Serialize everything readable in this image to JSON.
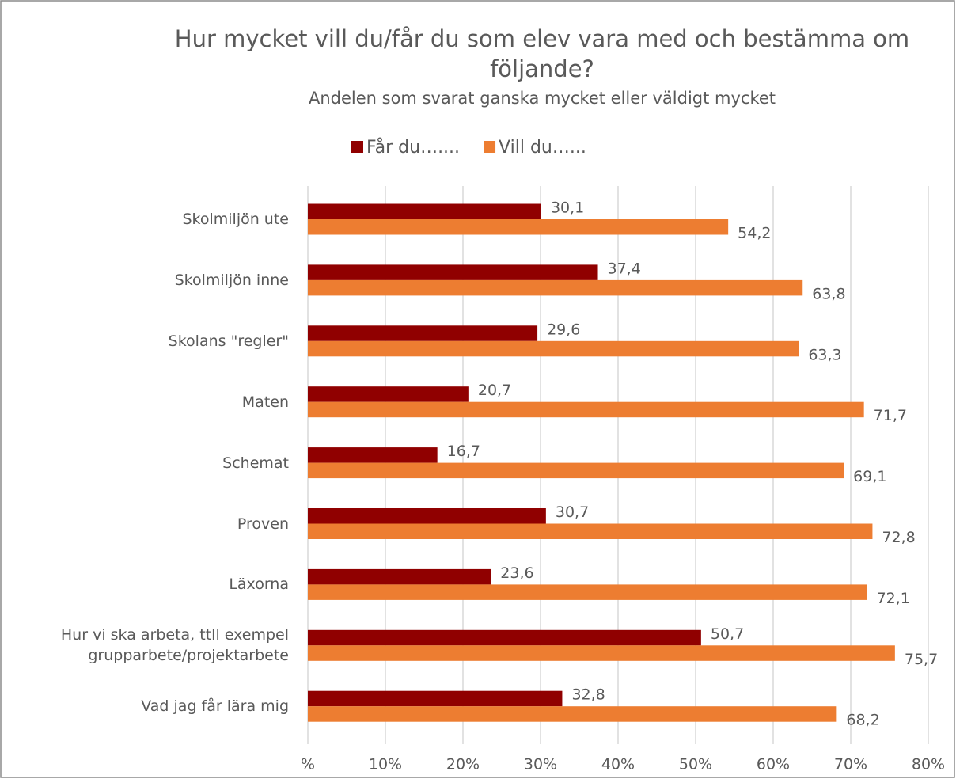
{
  "chart_data": {
    "type": "bar",
    "orientation": "horizontal",
    "title": "Hur mycket vill du/får du som elev vara med och bestämma om följande?",
    "subtitle": "Andelen som svarat ganska mycket eller väldigt mycket",
    "categories": [
      "Skolmiljön ute",
      "Skolmiljön inne",
      "Skolans \"regler\"",
      "Maten",
      "Schemat",
      "Proven",
      "Läxorna",
      "Hur vi ska arbeta, ttll exempel\ngrupparbete/projektarbete",
      "Vad jag får lära mig"
    ],
    "series": [
      {
        "name": "Får du…....",
        "color": "#900000",
        "values": [
          30.1,
          37.4,
          29.6,
          20.7,
          16.7,
          30.7,
          23.6,
          50.7,
          32.8
        ],
        "value_labels": [
          "30,1",
          "37,4",
          "29,6",
          "20,7",
          "16,7",
          "30,7",
          "23,6",
          "50,7",
          "32,8"
        ]
      },
      {
        "name": "Vill du…...",
        "color": "#ed7d31",
        "values": [
          54.2,
          63.8,
          63.3,
          71.7,
          69.1,
          72.8,
          72.1,
          75.7,
          68.2
        ],
        "value_labels": [
          "54,2",
          "63,8",
          "63,3",
          "71,7",
          "69,1",
          "72,8",
          "72,1",
          "75,7",
          "68,2"
        ]
      }
    ],
    "xlim": [
      0,
      80
    ],
    "xticks": [
      {
        "value": 0,
        "label": "%"
      },
      {
        "value": 10,
        "label": "10%"
      },
      {
        "value": 20,
        "label": "20%"
      },
      {
        "value": 30,
        "label": "30%"
      },
      {
        "value": 40,
        "label": "40%"
      },
      {
        "value": 50,
        "label": "50%"
      },
      {
        "value": 60,
        "label": "60%"
      },
      {
        "value": 70,
        "label": "70%"
      },
      {
        "value": 80,
        "label": "80%"
      }
    ],
    "grid": true,
    "legend": "top"
  }
}
